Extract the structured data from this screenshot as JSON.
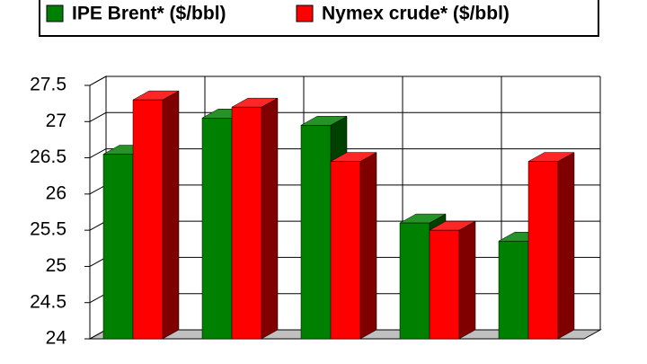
{
  "chart_data": {
    "type": "bar3d",
    "categories": [
      null,
      null,
      null,
      null,
      null
    ],
    "series": [
      {
        "name": "IPE Brent* ($/bbl)",
        "color": "#008000",
        "values": [
          26.55,
          27.05,
          26.95,
          25.6,
          25.35
        ]
      },
      {
        "name": "Nymex crude* ($/bbl)",
        "color": "#ff0000",
        "values": [
          27.3,
          27.2,
          26.45,
          25.5,
          26.45
        ]
      }
    ],
    "ylim": [
      24,
      27.5
    ],
    "yticks": [
      24,
      24.5,
      25,
      25.5,
      26,
      26.5,
      27,
      27.5
    ],
    "grid": true,
    "legend": "top"
  }
}
